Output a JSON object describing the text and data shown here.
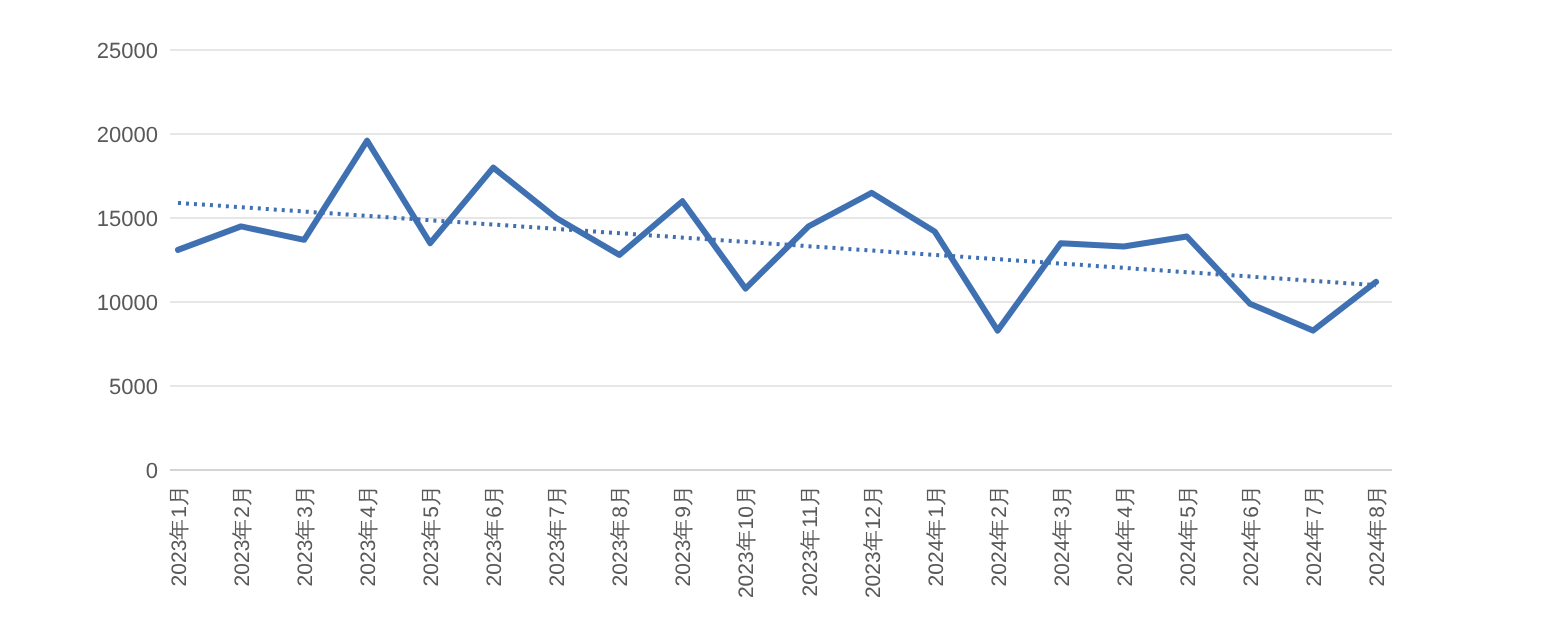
{
  "chart_data": {
    "type": "line",
    "categories": [
      "2023年1月",
      "2023年2月",
      "2023年3月",
      "2023年4月",
      "2023年5月",
      "2023年6月",
      "2023年7月",
      "2023年8月",
      "2023年9月",
      "2023年10月",
      "2023年11月",
      "2023年12月",
      "2024年1月",
      "2024年2月",
      "2024年3月",
      "2024年4月",
      "2024年5月",
      "2024年6月",
      "2024年7月",
      "2024年8月"
    ],
    "series": [
      {
        "color": "#3e70b2",
        "line_style": "solid",
        "values": [
          13100,
          14500,
          13700,
          19600,
          13500,
          18000,
          15000,
          12800,
          16000,
          10800,
          14500,
          16500,
          14200,
          8300,
          13500,
          13300,
          13900,
          9900,
          8300,
          11200
        ]
      },
      {
        "type": "line",
        "color": "#3e70b2",
        "line_style": "dotted",
        "x": [
          "2023年1月",
          "2024年8月"
        ],
        "values": [
          15900,
          11000
        ]
      }
    ],
    "ylim": [
      0,
      25000
    ],
    "yticks": [
      0,
      5000,
      10000,
      15000,
      20000,
      25000
    ],
    "grid": "y"
  }
}
